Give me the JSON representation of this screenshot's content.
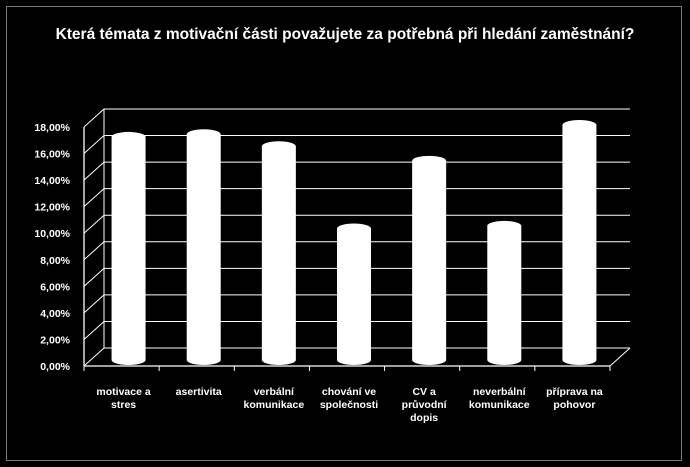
{
  "chart_data": {
    "type": "bar",
    "title": "Která témata z motivační části považujete za potřebná při hledání zaměstnání?",
    "categories": [
      [
        "motivace a",
        "stres"
      ],
      [
        "asertivita"
      ],
      [
        "verbální",
        "komunikace"
      ],
      [
        "chování ve",
        "společnosti"
      ],
      [
        "CV a",
        "průvodní",
        "dopis"
      ],
      [
        "neverbální",
        "komunikace"
      ],
      [
        "příprava na",
        "pohovor"
      ]
    ],
    "values": [
      16.8,
      17.0,
      16.1,
      9.9,
      15.0,
      10.1,
      17.7
    ],
    "ylim": [
      0,
      18
    ],
    "yticks": [
      "0,00%",
      "2,00%",
      "4,00%",
      "6,00%",
      "8,00%",
      "10,00%",
      "12,00%",
      "14,00%",
      "16,00%",
      "18,00%"
    ],
    "grid": true,
    "legend": "none",
    "bar_color": "#ffffff",
    "grid_color": "#ffffff",
    "background": "#000000"
  }
}
